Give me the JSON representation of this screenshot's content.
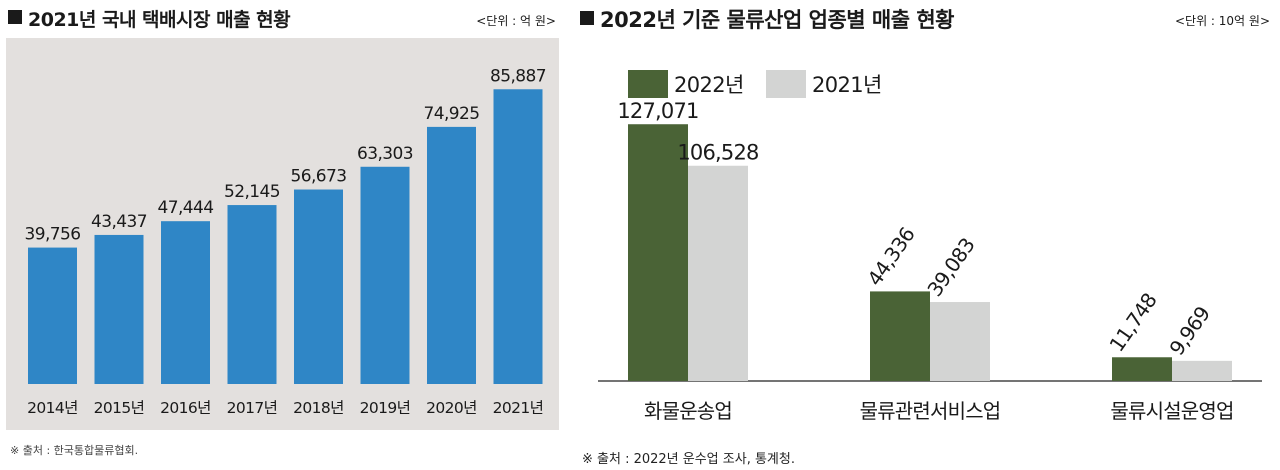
{
  "left_panel": {
    "title": "2021년 국내 택배시장 매출 현황",
    "unit": "<단위 : 억 원>",
    "source": "※ 출처 : 한국통합물류협회."
  },
  "right_panel": {
    "title": "2022년 기준 물류산업 업종별 매출 현황",
    "unit": "<단위 : 10억 원>",
    "source": "※ 출처 : 2022년 운수업 조사, 통계청."
  },
  "colors": {
    "left_bar": "#2f86c6",
    "left_background": "#e3e0de",
    "series_2022": "#4a6336",
    "series_2021": "#d3d4d3",
    "axis": "#222222"
  },
  "chart_data": [
    {
      "type": "bar",
      "title": "2021년 국내 택배시장 매출 현황",
      "unit": "억 원",
      "categories": [
        "2014년",
        "2015년",
        "2016년",
        "2017년",
        "2018년",
        "2019년",
        "2020년",
        "2021년"
      ],
      "values": [
        39756,
        43437,
        47444,
        52145,
        56673,
        63303,
        74925,
        85887
      ],
      "value_labels": [
        "39,756",
        "43,437",
        "47,444",
        "52,145",
        "56,673",
        "63,303",
        "74,925",
        "85,887"
      ],
      "xlabel": "",
      "ylabel": "",
      "ylim": [
        0,
        95000
      ],
      "grid": false
    },
    {
      "type": "bar",
      "title": "2022년 기준 물류산업 업종별 매출 현황",
      "unit": "10억 원",
      "categories": [
        "화물운송업",
        "물류관련서비스업",
        "물류시설운영업"
      ],
      "series": [
        {
          "name": "2022년",
          "values": [
            127071,
            44336,
            11748
          ],
          "value_labels": [
            "127,071",
            "44,336",
            "11,748"
          ]
        },
        {
          "name": "2021년",
          "values": [
            106528,
            39083,
            9969
          ],
          "value_labels": [
            "106,528",
            "39,083",
            "9,969"
          ]
        }
      ],
      "legend_position": "top-left",
      "xlabel": "",
      "ylabel": "",
      "ylim": [
        0,
        145000
      ],
      "grid": false
    }
  ]
}
